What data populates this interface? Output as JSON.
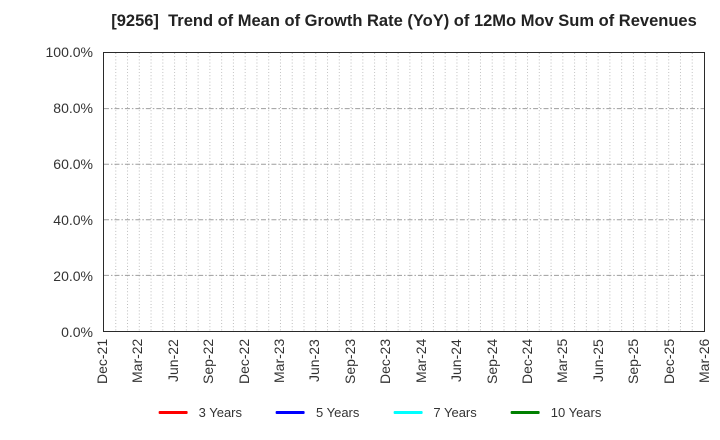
{
  "title": "[9256]  Trend of Mean of Growth Rate (YoY) of 12Mo Mov Sum of Revenues",
  "y_axis": {
    "labels": [
      "100.0%",
      "80.0%",
      "60.0%",
      "40.0%",
      "20.0%",
      "0.0%"
    ]
  },
  "x_axis": {
    "labels": [
      "Dec-21",
      "Mar-22",
      "Jun-22",
      "Sep-22",
      "Dec-22",
      "Mar-23",
      "Jun-23",
      "Sep-23",
      "Dec-23",
      "Mar-24",
      "Jun-24",
      "Sep-24",
      "Dec-24",
      "Mar-25",
      "Jun-25",
      "Sep-25",
      "Dec-25",
      "Mar-26"
    ],
    "minor_gridlines_per_interval": 3
  },
  "legend": {
    "items": [
      {
        "label": "3 Years",
        "color": "#ff0000"
      },
      {
        "label": "5 Years",
        "color": "#0000ff"
      },
      {
        "label": "7 Years",
        "color": "#00ffff"
      },
      {
        "label": "10 Years",
        "color": "#008000"
      }
    ]
  },
  "grid_colors": {
    "vertical_minor": "#bdbdbd",
    "horizontal_major": "#9e9e9e",
    "border": "#2a2a2a"
  },
  "chart_data": {
    "type": "line",
    "title": "[9256]  Trend of Mean of Growth Rate (YoY) of 12Mo Mov Sum of Revenues",
    "categories": [
      "Dec-21",
      "Mar-22",
      "Jun-22",
      "Sep-22",
      "Dec-22",
      "Mar-23",
      "Jun-23",
      "Sep-23",
      "Dec-23",
      "Mar-24",
      "Jun-24",
      "Sep-24",
      "Dec-24",
      "Mar-25",
      "Jun-25",
      "Sep-25",
      "Dec-25",
      "Mar-26"
    ],
    "series": [
      {
        "name": "3 Years",
        "color": "#ff0000",
        "values": []
      },
      {
        "name": "5 Years",
        "color": "#0000ff",
        "values": []
      },
      {
        "name": "7 Years",
        "color": "#00ffff",
        "values": []
      },
      {
        "name": "10 Years",
        "color": "#008000",
        "values": []
      }
    ],
    "xlabel": "",
    "ylabel": "",
    "ylim": [
      0,
      100
    ],
    "y_tick_format": "percent",
    "y_ticks": [
      0,
      20,
      40,
      60,
      80,
      100
    ],
    "grid": true,
    "legend_position": "bottom",
    "note": "Plot area is empty: no data points are drawn for any series"
  }
}
